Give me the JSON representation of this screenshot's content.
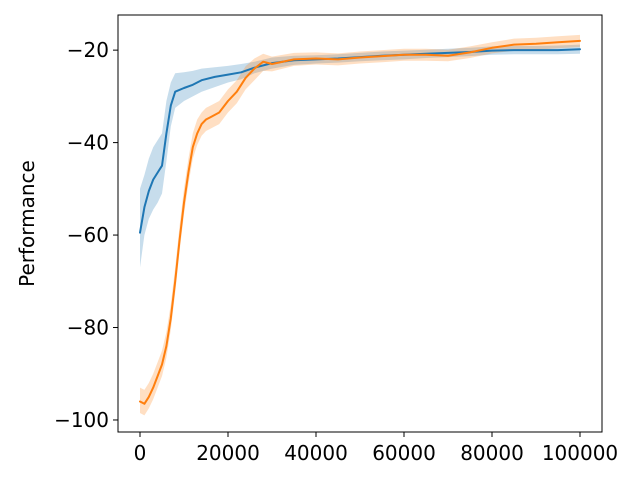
{
  "chart_data": {
    "type": "line",
    "title": "",
    "xlabel": "",
    "ylabel": "Performance",
    "xlim": [
      -5000,
      105000
    ],
    "ylim": [
      -102.6,
      -12.4
    ],
    "grid": false,
    "xticks": [
      0,
      20000,
      40000,
      60000,
      80000,
      100000
    ],
    "xtick_labels": [
      "0",
      "20000",
      "40000",
      "60000",
      "80000",
      "100000"
    ],
    "yticks": [
      -100,
      -80,
      -60,
      -40,
      -20
    ],
    "ytick_labels": [
      "−100",
      "−80",
      "−60",
      "−40",
      "−20"
    ],
    "series": [
      {
        "color": "#1f77b4",
        "band_color": "#1f77b4",
        "x": [
          0,
          1000,
          2000,
          3000,
          4000,
          5000,
          6000,
          7000,
          8000,
          10000,
          12000,
          14000,
          17000,
          20000,
          23000,
          26000,
          30000,
          35000,
          40000,
          45000,
          50000,
          55000,
          60000,
          65000,
          70000,
          75000,
          80000,
          85000,
          90000,
          95000,
          100000
        ],
        "values": [
          -59.5,
          -54,
          -50.5,
          -48,
          -46.5,
          -45,
          -38,
          -32,
          -29,
          -28.2,
          -27.5,
          -26.5,
          -25.8,
          -25.3,
          -24.8,
          -23.8,
          -22.8,
          -22.2,
          -22,
          -21.8,
          -21.5,
          -21.2,
          -21,
          -20.8,
          -20.6,
          -20.4,
          -20.1,
          -20,
          -20,
          -20,
          -19.8
        ],
        "lower": [
          -67,
          -60,
          -56.5,
          -54.5,
          -53,
          -51,
          -44,
          -36.5,
          -32.5,
          -31,
          -30,
          -29,
          -28,
          -27,
          -26.3,
          -25,
          -24,
          -23.2,
          -22.9,
          -22.7,
          -22.4,
          -22.2,
          -22,
          -21.7,
          -21.5,
          -21.3,
          -21,
          -20.9,
          -20.9,
          -20.9,
          -20.8
        ],
        "upper": [
          -50,
          -47,
          -43.5,
          -41,
          -39.5,
          -38,
          -31,
          -27,
          -25,
          -24.8,
          -24.5,
          -24,
          -23.7,
          -23.4,
          -23,
          -22.5,
          -21.6,
          -21.2,
          -21.1,
          -20.9,
          -20.6,
          -20.3,
          -20.1,
          -19.9,
          -19.7,
          -19.5,
          -19.2,
          -19.1,
          -19.1,
          -19,
          -18.8
        ]
      },
      {
        "color": "#ff7f0e",
        "band_color": "#ff7f0e",
        "x": [
          0,
          1000,
          2000,
          3000,
          4000,
          5000,
          6000,
          7000,
          8000,
          9000,
          10000,
          11000,
          12000,
          13000,
          14000,
          15000,
          16000,
          18000,
          20000,
          22000,
          24000,
          26000,
          28000,
          30000,
          35000,
          40000,
          45000,
          50000,
          55000,
          60000,
          65000,
          70000,
          75000,
          80000,
          85000,
          90000,
          95000,
          100000
        ],
        "values": [
          -96,
          -96.5,
          -95,
          -93,
          -90.5,
          -88,
          -84,
          -78,
          -70,
          -61,
          -53,
          -46.5,
          -41,
          -38,
          -36,
          -35,
          -34.5,
          -33.5,
          -31,
          -29,
          -26,
          -24,
          -22.5,
          -23,
          -22,
          -21.8,
          -22,
          -21.6,
          -21.3,
          -21,
          -21,
          -21.2,
          -20.5,
          -19.5,
          -18.8,
          -18.6,
          -18.3,
          -18
        ],
        "lower": [
          -98.5,
          -99,
          -97.5,
          -95.5,
          -93,
          -90.5,
          -86.5,
          -80.5,
          -72.5,
          -63.5,
          -55.5,
          -49,
          -43.5,
          -40.5,
          -38.5,
          -37.5,
          -37,
          -36,
          -33.5,
          -31.5,
          -28.5,
          -26.5,
          -24.5,
          -24.6,
          -23.4,
          -23.1,
          -23.3,
          -22.9,
          -22.6,
          -22.3,
          -22.3,
          -22.4,
          -21.7,
          -20.7,
          -20.1,
          -19.9,
          -19.6,
          -19.3
        ],
        "upper": [
          -93,
          -93.5,
          -92,
          -90,
          -87.5,
          -85,
          -81,
          -75,
          -67,
          -58,
          -50,
          -43.5,
          -38,
          -35,
          -33.5,
          -32.5,
          -32,
          -31,
          -28.5,
          -26.5,
          -23.5,
          -21.8,
          -20.8,
          -21.4,
          -20.6,
          -20.5,
          -20.7,
          -20.3,
          -20,
          -19.7,
          -19.7,
          -19.9,
          -19.2,
          -18.3,
          -17.5,
          -17.3,
          -17,
          -16.7
        ]
      }
    ]
  }
}
